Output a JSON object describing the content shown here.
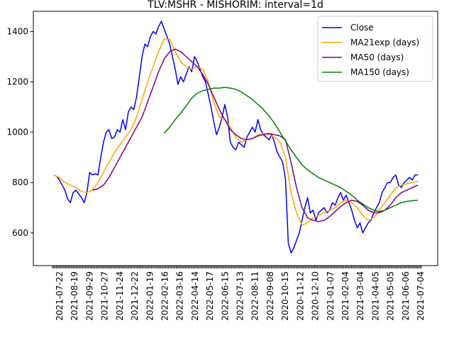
{
  "chart_data": {
    "type": "line",
    "title": "TLV:MSHR - MISHORIM: interval=1d",
    "xlabel": "",
    "ylabel": "",
    "x_tick_labels": [
      "2021-07-22",
      "2021-08-19",
      "2021-09-29",
      "2021-10-27",
      "2021-11-24",
      "2021-12-22",
      "2022-01-19",
      "2022-02-16",
      "2022-03-16",
      "2022-04-14",
      "2022-05-17",
      "2022-06-15",
      "2022-07-13",
      "2022-08-11",
      "2022-09-08",
      "2020-10-15",
      "2020-11-12",
      "2020-12-10",
      "2021-01-07",
      "2021-02-04",
      "2021-03-04",
      "2021-04-05",
      "2021-05-05",
      "2021-06-06",
      "2021-07-04"
    ],
    "y_ticks": [
      600,
      800,
      1000,
      1200,
      1400
    ],
    "ylim": [
      470,
      1480
    ],
    "grid": false,
    "legend_position": "top-right",
    "series": [
      {
        "name": "Close",
        "color": "#0000ff",
        "points": [
          [
            0,
            830
          ],
          [
            0.5,
            825
          ],
          [
            1,
            810
          ],
          [
            1.5,
            790
          ],
          [
            2,
            770
          ],
          [
            2.5,
            735
          ],
          [
            3,
            720
          ],
          [
            3.5,
            760
          ],
          [
            4,
            770
          ],
          [
            4.5,
            755
          ],
          [
            5,
            740
          ],
          [
            5.5,
            720
          ],
          [
            6,
            760
          ],
          [
            6.5,
            840
          ],
          [
            7,
            830
          ],
          [
            7.5,
            835
          ],
          [
            8,
            830
          ],
          [
            8.5,
            900
          ],
          [
            9,
            960
          ],
          [
            9.5,
            1000
          ],
          [
            10,
            1010
          ],
          [
            10.5,
            975
          ],
          [
            11,
            980
          ],
          [
            11.5,
            1010
          ],
          [
            12,
            1000
          ],
          [
            12.5,
            1050
          ],
          [
            13,
            1010
          ],
          [
            13.5,
            1080
          ],
          [
            14,
            1100
          ],
          [
            14.5,
            1090
          ],
          [
            15,
            1140
          ],
          [
            15.5,
            1220
          ],
          [
            16,
            1300
          ],
          [
            16.5,
            1350
          ],
          [
            17,
            1340
          ],
          [
            17.5,
            1380
          ],
          [
            18,
            1400
          ],
          [
            18.5,
            1390
          ],
          [
            19,
            1420
          ],
          [
            19.5,
            1440
          ],
          [
            20,
            1410
          ],
          [
            20.5,
            1380
          ],
          [
            21,
            1350
          ],
          [
            21.5,
            1300
          ],
          [
            22,
            1250
          ],
          [
            22.5,
            1190
          ],
          [
            23,
            1220
          ],
          [
            23.5,
            1200
          ],
          [
            24,
            1230
          ],
          [
            24.5,
            1260
          ],
          [
            25,
            1240
          ],
          [
            25.5,
            1300
          ],
          [
            26,
            1280
          ],
          [
            26.5,
            1250
          ],
          [
            27,
            1220
          ],
          [
            27.5,
            1200
          ],
          [
            28,
            1150
          ],
          [
            28.5,
            1100
          ],
          [
            29,
            1040
          ],
          [
            29.5,
            990
          ],
          [
            30,
            1020
          ],
          [
            30.5,
            1060
          ],
          [
            31,
            1110
          ],
          [
            31.5,
            1060
          ],
          [
            32,
            960
          ],
          [
            32.5,
            940
          ],
          [
            33,
            930
          ],
          [
            33.5,
            960
          ],
          [
            34,
            950
          ],
          [
            34.5,
            940
          ],
          [
            35,
            980
          ],
          [
            35.5,
            1000
          ],
          [
            36,
            1020
          ],
          [
            36.5,
            1000
          ],
          [
            37,
            1050
          ],
          [
            37.5,
            1010
          ],
          [
            38,
            990
          ],
          [
            38.5,
            980
          ],
          [
            39,
            970
          ],
          [
            39.5,
            990
          ],
          [
            40,
            960
          ],
          [
            40.5,
            920
          ],
          [
            41,
            900
          ],
          [
            41.5,
            880
          ],
          [
            42,
            810
          ],
          [
            42.5,
            560
          ],
          [
            43,
            520
          ],
          [
            43.5,
            540
          ],
          [
            44,
            570
          ],
          [
            44.5,
            600
          ],
          [
            45,
            650
          ],
          [
            45.5,
            700
          ],
          [
            46,
            740
          ],
          [
            46.5,
            680
          ],
          [
            47,
            690
          ],
          [
            47.5,
            650
          ],
          [
            48,
            680
          ],
          [
            48.5,
            690
          ],
          [
            49,
            700
          ],
          [
            49.5,
            680
          ],
          [
            50,
            690
          ],
          [
            50.5,
            720
          ],
          [
            51,
            710
          ],
          [
            51.5,
            740
          ],
          [
            52,
            760
          ],
          [
            52.5,
            730
          ],
          [
            53,
            750
          ],
          [
            53.5,
            720
          ],
          [
            54,
            690
          ],
          [
            54.5,
            650
          ],
          [
            55,
            620
          ],
          [
            55.5,
            640
          ],
          [
            56,
            600
          ],
          [
            56.5,
            620
          ],
          [
            57,
            640
          ],
          [
            57.5,
            650
          ],
          [
            58,
            680
          ],
          [
            58.5,
            700
          ],
          [
            59,
            720
          ],
          [
            59.5,
            760
          ],
          [
            60,
            780
          ],
          [
            60.5,
            800
          ],
          [
            61,
            800
          ],
          [
            61.5,
            820
          ],
          [
            62,
            830
          ],
          [
            62.5,
            790
          ],
          [
            63,
            780
          ],
          [
            63.5,
            800
          ],
          [
            64,
            810
          ],
          [
            64.5,
            820
          ],
          [
            65,
            810
          ],
          [
            65.5,
            830
          ],
          [
            66,
            830
          ]
        ]
      },
      {
        "name": "MA21exp (days)",
        "color": "#ffa500",
        "points": [
          [
            0,
            830
          ],
          [
            1,
            820
          ],
          [
            2,
            800
          ],
          [
            3,
            790
          ],
          [
            4,
            780
          ],
          [
            5,
            765
          ],
          [
            6,
            760
          ],
          [
            7,
            770
          ],
          [
            8,
            800
          ],
          [
            9,
            840
          ],
          [
            10,
            880
          ],
          [
            11,
            920
          ],
          [
            12,
            950
          ],
          [
            13,
            980
          ],
          [
            14,
            1010
          ],
          [
            15,
            1060
          ],
          [
            16,
            1130
          ],
          [
            17,
            1200
          ],
          [
            18,
            1260
          ],
          [
            19,
            1320
          ],
          [
            20,
            1370
          ],
          [
            21,
            1370
          ],
          [
            22,
            1320
          ],
          [
            23,
            1280
          ],
          [
            24,
            1260
          ],
          [
            25,
            1250
          ],
          [
            26,
            1260
          ],
          [
            27,
            1250
          ],
          [
            28,
            1200
          ],
          [
            29,
            1120
          ],
          [
            30,
            1060
          ],
          [
            31,
            1050
          ],
          [
            32,
            1020
          ],
          [
            33,
            980
          ],
          [
            34,
            960
          ],
          [
            35,
            970
          ],
          [
            36,
            975
          ],
          [
            37,
            990
          ],
          [
            38,
            995
          ],
          [
            39,
            990
          ],
          [
            40,
            980
          ],
          [
            41,
            960
          ],
          [
            42,
            900
          ],
          [
            43,
            760
          ],
          [
            44,
            680
          ],
          [
            45,
            630
          ],
          [
            46,
            640
          ],
          [
            47,
            660
          ],
          [
            48,
            670
          ],
          [
            49,
            680
          ],
          [
            50,
            690
          ],
          [
            51,
            700
          ],
          [
            52,
            720
          ],
          [
            53,
            730
          ],
          [
            54,
            720
          ],
          [
            55,
            700
          ],
          [
            56,
            670
          ],
          [
            57,
            650
          ],
          [
            58,
            660
          ],
          [
            59,
            690
          ],
          [
            60,
            720
          ],
          [
            61,
            750
          ],
          [
            62,
            780
          ],
          [
            63,
            790
          ],
          [
            64,
            795
          ],
          [
            65,
            800
          ],
          [
            66,
            805
          ]
        ]
      },
      {
        "name": "MA50 (days)",
        "color": "#800080",
        "points": [
          [
            7,
            770
          ],
          [
            8,
            775
          ],
          [
            9,
            790
          ],
          [
            10,
            820
          ],
          [
            11,
            860
          ],
          [
            12,
            900
          ],
          [
            13,
            940
          ],
          [
            14,
            980
          ],
          [
            15,
            1020
          ],
          [
            16,
            1060
          ],
          [
            17,
            1120
          ],
          [
            18,
            1180
          ],
          [
            19,
            1240
          ],
          [
            20,
            1290
          ],
          [
            21,
            1320
          ],
          [
            22,
            1330
          ],
          [
            23,
            1320
          ],
          [
            24,
            1300
          ],
          [
            25,
            1280
          ],
          [
            26,
            1260
          ],
          [
            27,
            1230
          ],
          [
            28,
            1190
          ],
          [
            29,
            1140
          ],
          [
            30,
            1090
          ],
          [
            31,
            1050
          ],
          [
            32,
            1010
          ],
          [
            33,
            990
          ],
          [
            34,
            975
          ],
          [
            35,
            970
          ],
          [
            36,
            975
          ],
          [
            37,
            985
          ],
          [
            38,
            990
          ],
          [
            39,
            995
          ],
          [
            40,
            990
          ],
          [
            41,
            985
          ],
          [
            42,
            970
          ],
          [
            43,
            880
          ],
          [
            44,
            780
          ],
          [
            45,
            700
          ],
          [
            46,
            660
          ],
          [
            47,
            650
          ],
          [
            48,
            645
          ],
          [
            49,
            650
          ],
          [
            50,
            665
          ],
          [
            51,
            685
          ],
          [
            52,
            705
          ],
          [
            53,
            720
          ],
          [
            54,
            730
          ],
          [
            55,
            725
          ],
          [
            56,
            710
          ],
          [
            57,
            690
          ],
          [
            58,
            680
          ],
          [
            59,
            680
          ],
          [
            60,
            690
          ],
          [
            61,
            710
          ],
          [
            62,
            740
          ],
          [
            63,
            760
          ],
          [
            64,
            770
          ],
          [
            65,
            780
          ],
          [
            66,
            790
          ]
        ]
      },
      {
        "name": "MA150 (days)",
        "color": "#008000",
        "points": [
          [
            20,
            995
          ],
          [
            21,
            1020
          ],
          [
            22,
            1050
          ],
          [
            23,
            1075
          ],
          [
            24,
            1105
          ],
          [
            25,
            1135
          ],
          [
            26,
            1155
          ],
          [
            27,
            1165
          ],
          [
            28,
            1170
          ],
          [
            29,
            1175
          ],
          [
            30,
            1175
          ],
          [
            31,
            1178
          ],
          [
            32,
            1175
          ],
          [
            33,
            1170
          ],
          [
            34,
            1160
          ],
          [
            35,
            1145
          ],
          [
            36,
            1130
          ],
          [
            37,
            1110
          ],
          [
            38,
            1090
          ],
          [
            39,
            1065
          ],
          [
            40,
            1035
          ],
          [
            41,
            1000
          ],
          [
            42,
            965
          ],
          [
            43,
            930
          ],
          [
            44,
            900
          ],
          [
            45,
            870
          ],
          [
            46,
            850
          ],
          [
            47,
            835
          ],
          [
            48,
            820
          ],
          [
            49,
            810
          ],
          [
            50,
            800
          ],
          [
            51,
            790
          ],
          [
            52,
            780
          ],
          [
            53,
            765
          ],
          [
            54,
            750
          ],
          [
            55,
            730
          ],
          [
            56,
            715
          ],
          [
            57,
            700
          ],
          [
            58,
            690
          ],
          [
            59,
            685
          ],
          [
            60,
            690
          ],
          [
            61,
            700
          ],
          [
            62,
            710
          ],
          [
            63,
            720
          ],
          [
            64,
            725
          ],
          [
            65,
            728
          ],
          [
            66,
            730
          ]
        ]
      }
    ]
  }
}
